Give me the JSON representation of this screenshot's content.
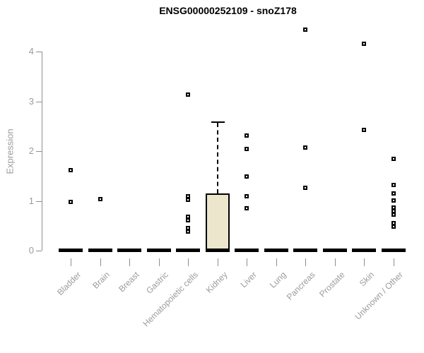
{
  "chart_data": {
    "type": "boxplot",
    "title": "ENSG00000252109 - snoZ178",
    "ylabel": "Expression",
    "xlabel": "",
    "yticks": [
      0,
      1,
      2,
      3,
      4
    ],
    "ylim": [
      0,
      4.6
    ],
    "grid": false,
    "legend": "none",
    "colors": {
      "box_fill": "#ece6cc",
      "data": "#000000",
      "axis": "#8f8f8f",
      "tick_text": "#9b9b9b",
      "title_text": "#000000",
      "background": "#ffffff"
    },
    "categories": [
      {
        "label": "Bladder",
        "box": {
          "low": 0,
          "q1": 0,
          "median": 0,
          "q3": 0,
          "high": 0
        },
        "outliers": [
          1.62,
          0.98
        ]
      },
      {
        "label": "Brain",
        "box": {
          "low": 0,
          "q1": 0,
          "median": 0,
          "q3": 0,
          "high": 0
        },
        "outliers": [
          1.04
        ]
      },
      {
        "label": "Breast",
        "box": {
          "low": 0,
          "q1": 0,
          "median": 0,
          "q3": 0,
          "high": 0
        },
        "outliers": []
      },
      {
        "label": "Gastric",
        "box": {
          "low": 0,
          "q1": 0,
          "median": 0,
          "q3": 0,
          "high": 0
        },
        "outliers": []
      },
      {
        "label": "Hematopoietic cells",
        "box": {
          "low": 0,
          "q1": 0,
          "median": 0,
          "q3": 0,
          "high": 0
        },
        "outliers": [
          3.14,
          1.09,
          1.02,
          0.68,
          0.61,
          0.45,
          0.38
        ]
      },
      {
        "label": "Kidney",
        "box": {
          "low": 0,
          "q1": 0,
          "median": 0,
          "q3": 1.15,
          "high": 2.59
        },
        "outliers": []
      },
      {
        "label": "Liver",
        "box": {
          "low": 0,
          "q1": 0,
          "median": 0,
          "q3": 0,
          "high": 0
        },
        "outliers": [
          2.32,
          2.04,
          1.49,
          1.09,
          0.85
        ]
      },
      {
        "label": "Lung",
        "box": {
          "low": 0,
          "q1": 0,
          "median": 0,
          "q3": 0,
          "high": 0
        },
        "outliers": []
      },
      {
        "label": "Pancreas",
        "box": {
          "low": 0,
          "q1": 0,
          "median": 0,
          "q3": 0,
          "high": 0
        },
        "outliers": [
          4.44,
          2.08,
          1.26
        ]
      },
      {
        "label": "Prostate",
        "box": {
          "low": 0,
          "q1": 0,
          "median": 0,
          "q3": 0,
          "high": 0
        },
        "outliers": []
      },
      {
        "label": "Skin",
        "box": {
          "low": 0,
          "q1": 0,
          "median": 0,
          "q3": 0,
          "high": 0
        },
        "outliers": [
          4.16,
          2.43
        ]
      },
      {
        "label": "Unknown / Other",
        "box": {
          "low": 0,
          "q1": 0,
          "median": 0,
          "q3": 0,
          "high": 0
        },
        "outliers": [
          1.84,
          1.32,
          1.15,
          1.01,
          0.86,
          0.79,
          0.72,
          0.56,
          0.49
        ]
      }
    ]
  }
}
